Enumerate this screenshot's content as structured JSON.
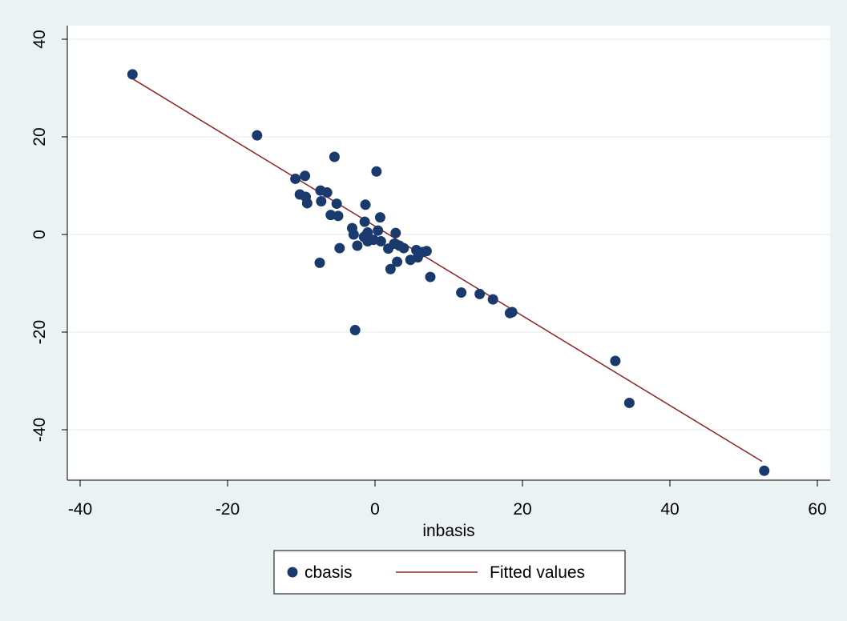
{
  "chart_data": {
    "type": "scatter",
    "title": "",
    "xlabel": "inbasis",
    "ylabel": "",
    "xlim": [
      -40,
      60
    ],
    "ylim": [
      -50,
      40
    ],
    "grid": "horizontal",
    "legend_position": "bottom",
    "x_ticks": [
      "-40",
      "-20",
      "0",
      "20",
      "40",
      "60"
    ],
    "y_ticks": [
      "40",
      "20",
      "0",
      "-20",
      "-40"
    ],
    "colors": {
      "background": "#eaf2f3",
      "plot_area": "#ffffff",
      "points": "#1a3a6e",
      "fit_line": "#8b2323",
      "grid": "#e6eaeb"
    },
    "legend": {
      "scatter_label": "cbasis",
      "line_label": "Fitted values"
    },
    "series": [
      {
        "name": "cbasis",
        "kind": "scatter",
        "points": [
          [
            -32.9,
            32.8
          ],
          [
            -16.0,
            20.3
          ],
          [
            -5.5,
            15.9
          ],
          [
            0.2,
            12.9
          ],
          [
            -9.5,
            12.0
          ],
          [
            -10.8,
            11.4
          ],
          [
            -7.4,
            9.0
          ],
          [
            -6.5,
            8.6
          ],
          [
            -10.2,
            8.2
          ],
          [
            -9.4,
            7.7
          ],
          [
            -7.3,
            6.8
          ],
          [
            -9.2,
            6.4
          ],
          [
            -5.2,
            6.3
          ],
          [
            -1.3,
            6.1
          ],
          [
            -6.0,
            4.0
          ],
          [
            -5.0,
            3.8
          ],
          [
            0.7,
            3.5
          ],
          [
            -1.4,
            2.6
          ],
          [
            -3.1,
            1.3
          ],
          [
            0.4,
            0.8
          ],
          [
            -1.0,
            0.4
          ],
          [
            2.8,
            0.3
          ],
          [
            -2.9,
            0.0
          ],
          [
            -1.5,
            -0.5
          ],
          [
            -0.2,
            -1.1
          ],
          [
            0.8,
            -1.4
          ],
          [
            -1.0,
            -1.4
          ],
          [
            2.6,
            -1.9
          ],
          [
            -2.4,
            -2.3
          ],
          [
            3.3,
            -2.3
          ],
          [
            1.8,
            -2.9
          ],
          [
            -4.8,
            -2.8
          ],
          [
            3.9,
            -2.8
          ],
          [
            5.6,
            -3.2
          ],
          [
            7.0,
            -3.4
          ],
          [
            6.5,
            -3.6
          ],
          [
            5.8,
            -4.7
          ],
          [
            4.8,
            -5.2
          ],
          [
            3.0,
            -5.6
          ],
          [
            -7.5,
            -5.8
          ],
          [
            2.1,
            -7.1
          ],
          [
            7.5,
            -8.7
          ],
          [
            11.7,
            -11.9
          ],
          [
            14.2,
            -12.2
          ],
          [
            16.0,
            -13.3
          ],
          [
            18.3,
            -16.1
          ],
          [
            18.6,
            -15.9
          ],
          [
            -2.7,
            -19.6
          ],
          [
            32.6,
            -25.9
          ],
          [
            34.5,
            -34.5
          ],
          [
            52.8,
            -48.4
          ]
        ]
      },
      {
        "name": "Fitted values",
        "kind": "line",
        "points": [
          [
            -33.0,
            32.0
          ],
          [
            52.5,
            -46.5
          ]
        ]
      }
    ]
  }
}
